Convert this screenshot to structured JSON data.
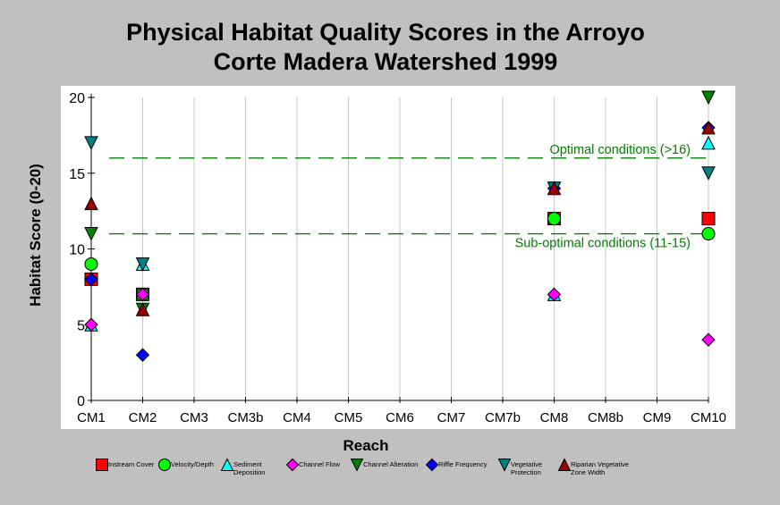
{
  "title_line1": "Physical Habitat Quality Scores in the Arroyo",
  "title_line2": "Corte Madera Watershed 1999",
  "chart_data": {
    "type": "scatter",
    "title": "Physical Habitat Quality Scores in the Arroyo Corte Madera Watershed 1999",
    "xlabel": "Reach",
    "ylabel": "Habitat Score (0-20)",
    "categories": [
      "CM1",
      "CM2",
      "CM3",
      "CM3b",
      "CM4",
      "CM5",
      "CM6",
      "CM7",
      "CM7b",
      "CM8",
      "CM8b",
      "CM9",
      "CM10"
    ],
    "ylim": [
      0,
      20
    ],
    "yticks": [
      0,
      5,
      10,
      15,
      20
    ],
    "grid": "vertical",
    "legend_position": "bottom",
    "reference_lines": [
      {
        "value": 16,
        "label": "Optimal conditions (>16)",
        "color": "#008000"
      },
      {
        "value": 11,
        "label": "Sub-optimal conditions (11-15)",
        "color": "#008000"
      }
    ],
    "series": [
      {
        "name": "Instream Cover",
        "marker": "square",
        "color": "#ff0000",
        "points": [
          {
            "x": "CM1",
            "y": 8
          },
          {
            "x": "CM2",
            "y": 7
          },
          {
            "x": "CM8",
            "y": 12
          },
          {
            "x": "CM10",
            "y": 12
          }
        ]
      },
      {
        "name": "Velocity/Depth",
        "marker": "circle",
        "color": "#00ff00",
        "points": [
          {
            "x": "CM1",
            "y": 9
          },
          {
            "x": "CM2",
            "y": 7
          },
          {
            "x": "CM8",
            "y": 12
          },
          {
            "x": "CM10",
            "y": 11
          }
        ]
      },
      {
        "name": "Sediment Deposition",
        "marker": "triangle-up",
        "color": "#00ffff",
        "points": [
          {
            "x": "CM1",
            "y": 5
          },
          {
            "x": "CM2",
            "y": 9
          },
          {
            "x": "CM8",
            "y": 7
          },
          {
            "x": "CM10",
            "y": 17
          }
        ]
      },
      {
        "name": "Channel Flow",
        "marker": "diamond",
        "color": "#ff00ff",
        "points": [
          {
            "x": "CM1",
            "y": 5
          },
          {
            "x": "CM2",
            "y": 7
          },
          {
            "x": "CM8",
            "y": 7
          },
          {
            "x": "CM10",
            "y": 4
          }
        ]
      },
      {
        "name": "Channel Alteration",
        "marker": "triangle-down",
        "color": "#008000",
        "points": [
          {
            "x": "CM1",
            "y": 11
          },
          {
            "x": "CM2",
            "y": 6
          },
          {
            "x": "CM8",
            "y": 14
          },
          {
            "x": "CM10",
            "y": 20
          }
        ]
      },
      {
        "name": "Riffle Frequency",
        "marker": "diamond",
        "color": "#0000ff",
        "points": [
          {
            "x": "CM1",
            "y": 8
          },
          {
            "x": "CM2",
            "y": 3
          },
          {
            "x": "CM8",
            "y": 14
          },
          {
            "x": "CM10",
            "y": 18
          }
        ]
      },
      {
        "name": "Vegetative Protection",
        "marker": "triangle-down",
        "color": "#008080",
        "points": [
          {
            "x": "CM1",
            "y": 17
          },
          {
            "x": "CM2",
            "y": 9
          },
          {
            "x": "CM8",
            "y": 14
          },
          {
            "x": "CM10",
            "y": 15
          }
        ]
      },
      {
        "name": "Riparian Vegetative Zone Width",
        "marker": "triangle-up",
        "color": "#990000",
        "points": [
          {
            "x": "CM1",
            "y": 13
          },
          {
            "x": "CM2",
            "y": 6
          },
          {
            "x": "CM8",
            "y": 14
          },
          {
            "x": "CM10",
            "y": 18
          }
        ]
      }
    ]
  }
}
